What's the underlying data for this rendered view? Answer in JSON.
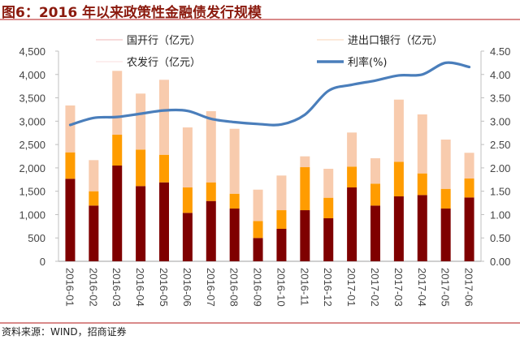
{
  "header": {
    "title": "图6：2016 年以来政策性金融债发行规模"
  },
  "footer": {
    "source": "资料来源：WIND，招商证券"
  },
  "colors": {
    "cdb": "#7F0000",
    "exim": "#FF9C00",
    "adbc": "#F8CBAD",
    "rate": "#4A7EBB",
    "axis": "#BFBFBF",
    "title": "#8B1A0E"
  },
  "chart_data": {
    "type": "bar",
    "stacked": true,
    "title": "图6：2016 年以来政策性金融债发行规模",
    "categories": [
      "2016-01",
      "2016-02",
      "2016-03",
      "2016-04",
      "2016-05",
      "2016-06",
      "2016-07",
      "2016-08",
      "2016-09",
      "2016-10",
      "2016-11",
      "2016-12",
      "2017-01",
      "2017-02",
      "2017-03",
      "2017-04",
      "2017-05",
      "2017-06"
    ],
    "series": [
      {
        "name": "国开行（亿元）",
        "type": "bar",
        "axis": "left",
        "color": "#7F0000",
        "values": [
          1767,
          1193,
          2050,
          1610,
          1690,
          1037,
          1291,
          1129,
          499,
          695,
          1094,
          921,
          1581,
          1193,
          1390,
          1419,
          1129,
          1367
        ]
      },
      {
        "name": "进出口银行（亿元）",
        "type": "bar",
        "axis": "left",
        "color": "#FF9C00",
        "values": [
          566,
          307,
          660,
          782,
          591,
          544,
          399,
          318,
          364,
          399,
          921,
          440,
          446,
          469,
          741,
          463,
          422,
          405
        ]
      },
      {
        "name": "农发行（亿元）",
        "type": "bar",
        "axis": "left",
        "color": "#F8CBAD",
        "values": [
          1003,
          666,
          1367,
          1199,
          1605,
          1285,
          1524,
          1390,
          671,
          742,
          232,
          620,
          730,
          544,
          1331,
          1263,
          1055,
          551
        ]
      },
      {
        "name": "利率(%)",
        "type": "line",
        "axis": "right",
        "color": "#4A7EBB",
        "values": [
          2.92,
          3.07,
          3.09,
          3.16,
          3.23,
          3.22,
          3.05,
          2.98,
          2.94,
          2.93,
          3.14,
          3.65,
          3.78,
          3.87,
          3.98,
          4.0,
          4.25,
          4.16
        ]
      }
    ],
    "y_left": {
      "min": 0,
      "max": 4500,
      "step": 500,
      "ticks": [
        "0",
        "500",
        "1,000",
        "1,500",
        "2,000",
        "2,500",
        "3,000",
        "3,500",
        "4,000",
        "4,500"
      ]
    },
    "y_right": {
      "min": 0,
      "max": 4.5,
      "step": 0.5,
      "ticks": [
        "0.00",
        "0.50",
        "1.00",
        "1.50",
        "2.00",
        "2.50",
        "3.00",
        "3.50",
        "4.00",
        "4.50"
      ]
    },
    "xlabel": "",
    "ylabel": "",
    "grid": false,
    "legend": {
      "placement": "top",
      "entries": [
        {
          "label": "国开行（亿元）",
          "color": "#F2C4C4"
        },
        {
          "label": "进出口银行（亿元）",
          "color": "#FBDCC4"
        },
        {
          "label": "农发行（亿元）",
          "color": "#FBE4E4"
        },
        {
          "label": "利率(%)",
          "color": "#4A7EBB"
        }
      ]
    }
  }
}
